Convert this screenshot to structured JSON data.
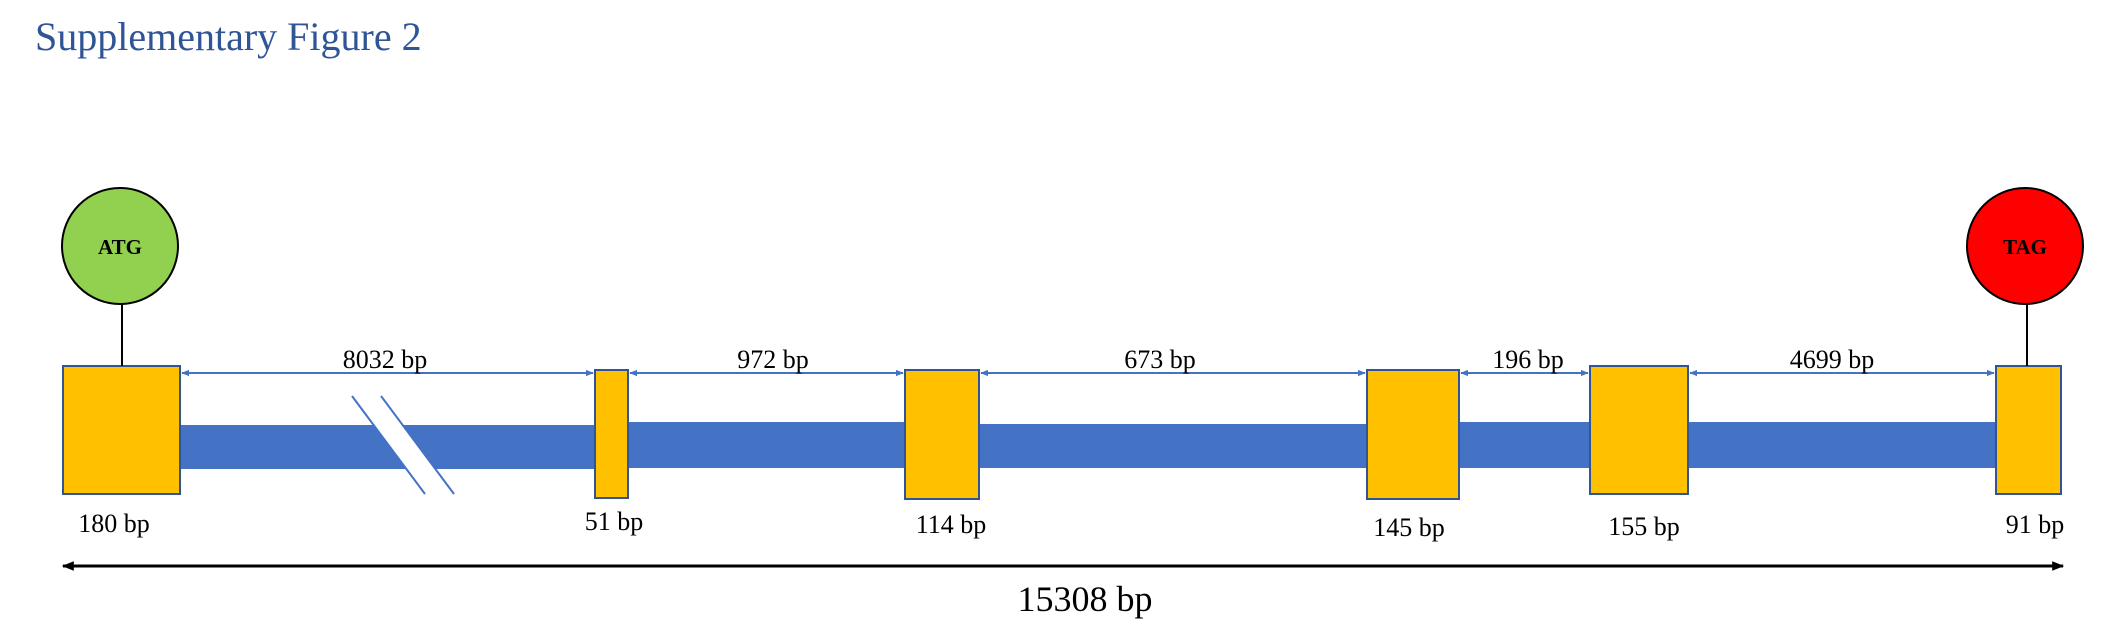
{
  "title": "Supplementary Figure 2",
  "start_codon": "ATG",
  "stop_codon": "TAG",
  "exons": [
    {
      "label": "180 bp"
    },
    {
      "label": "51 bp"
    },
    {
      "label": "114 bp"
    },
    {
      "label": "145 bp"
    },
    {
      "label": "155 bp"
    },
    {
      "label": "91 bp"
    }
  ],
  "introns": [
    {
      "label": "8032 bp"
    },
    {
      "label": "972 bp"
    },
    {
      "label": "673 bp"
    },
    {
      "label": "196 bp"
    },
    {
      "label": "4699 bp"
    }
  ],
  "total_length": "15308 bp",
  "colors": {
    "title": "#2f5597",
    "exon": "#ffc000",
    "exon_border": "#2f5597",
    "intron": "#4472c4",
    "arrow": "#4472c4",
    "start_circle": "#92d050",
    "stop_circle": "#ff0000",
    "text": "#000000"
  }
}
